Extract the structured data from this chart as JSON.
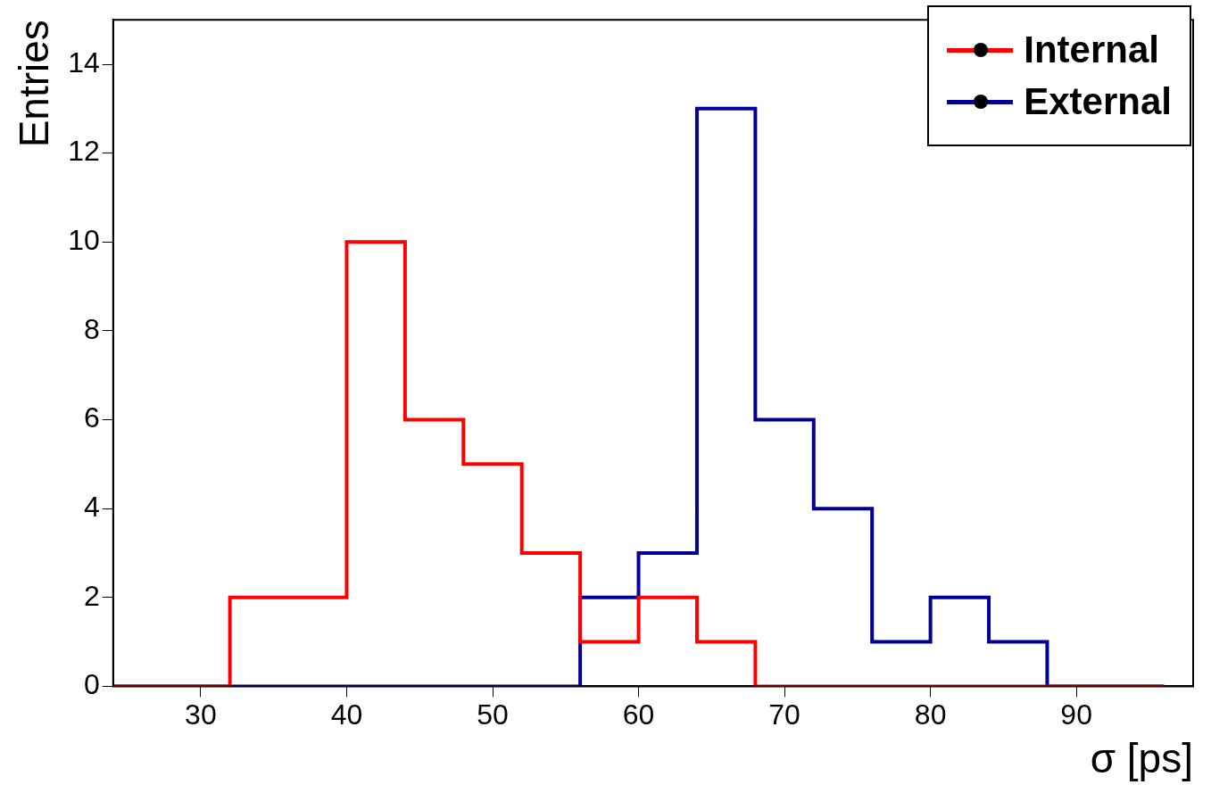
{
  "chart_data": {
    "type": "histogram",
    "xlabel": "σ [ps]",
    "ylabel": "Entries",
    "bins": [
      24,
      28,
      32,
      36,
      40,
      44,
      48,
      52,
      56,
      60,
      64,
      68,
      72,
      76,
      80,
      84,
      88,
      92,
      96
    ],
    "series": [
      {
        "name": "Internal",
        "color": "#ff0000",
        "values": [
          0,
          0,
          2,
          2,
          10,
          6,
          5,
          3,
          1,
          2,
          1,
          0,
          0,
          0,
          0,
          0,
          0,
          0
        ]
      },
      {
        "name": "External",
        "color": "#000099",
        "values": [
          0,
          0,
          0,
          0,
          0,
          0,
          0,
          0,
          2,
          3,
          13,
          6,
          4,
          1,
          2,
          1,
          0,
          0
        ]
      }
    ],
    "xlim": [
      24,
      98
    ],
    "xticks": [
      30,
      40,
      50,
      60,
      70,
      80,
      90
    ],
    "ylim": [
      0,
      15
    ],
    "yticks": [
      0,
      2,
      4,
      6,
      8,
      10,
      12,
      14
    ],
    "grid": false,
    "legend": "top right"
  }
}
